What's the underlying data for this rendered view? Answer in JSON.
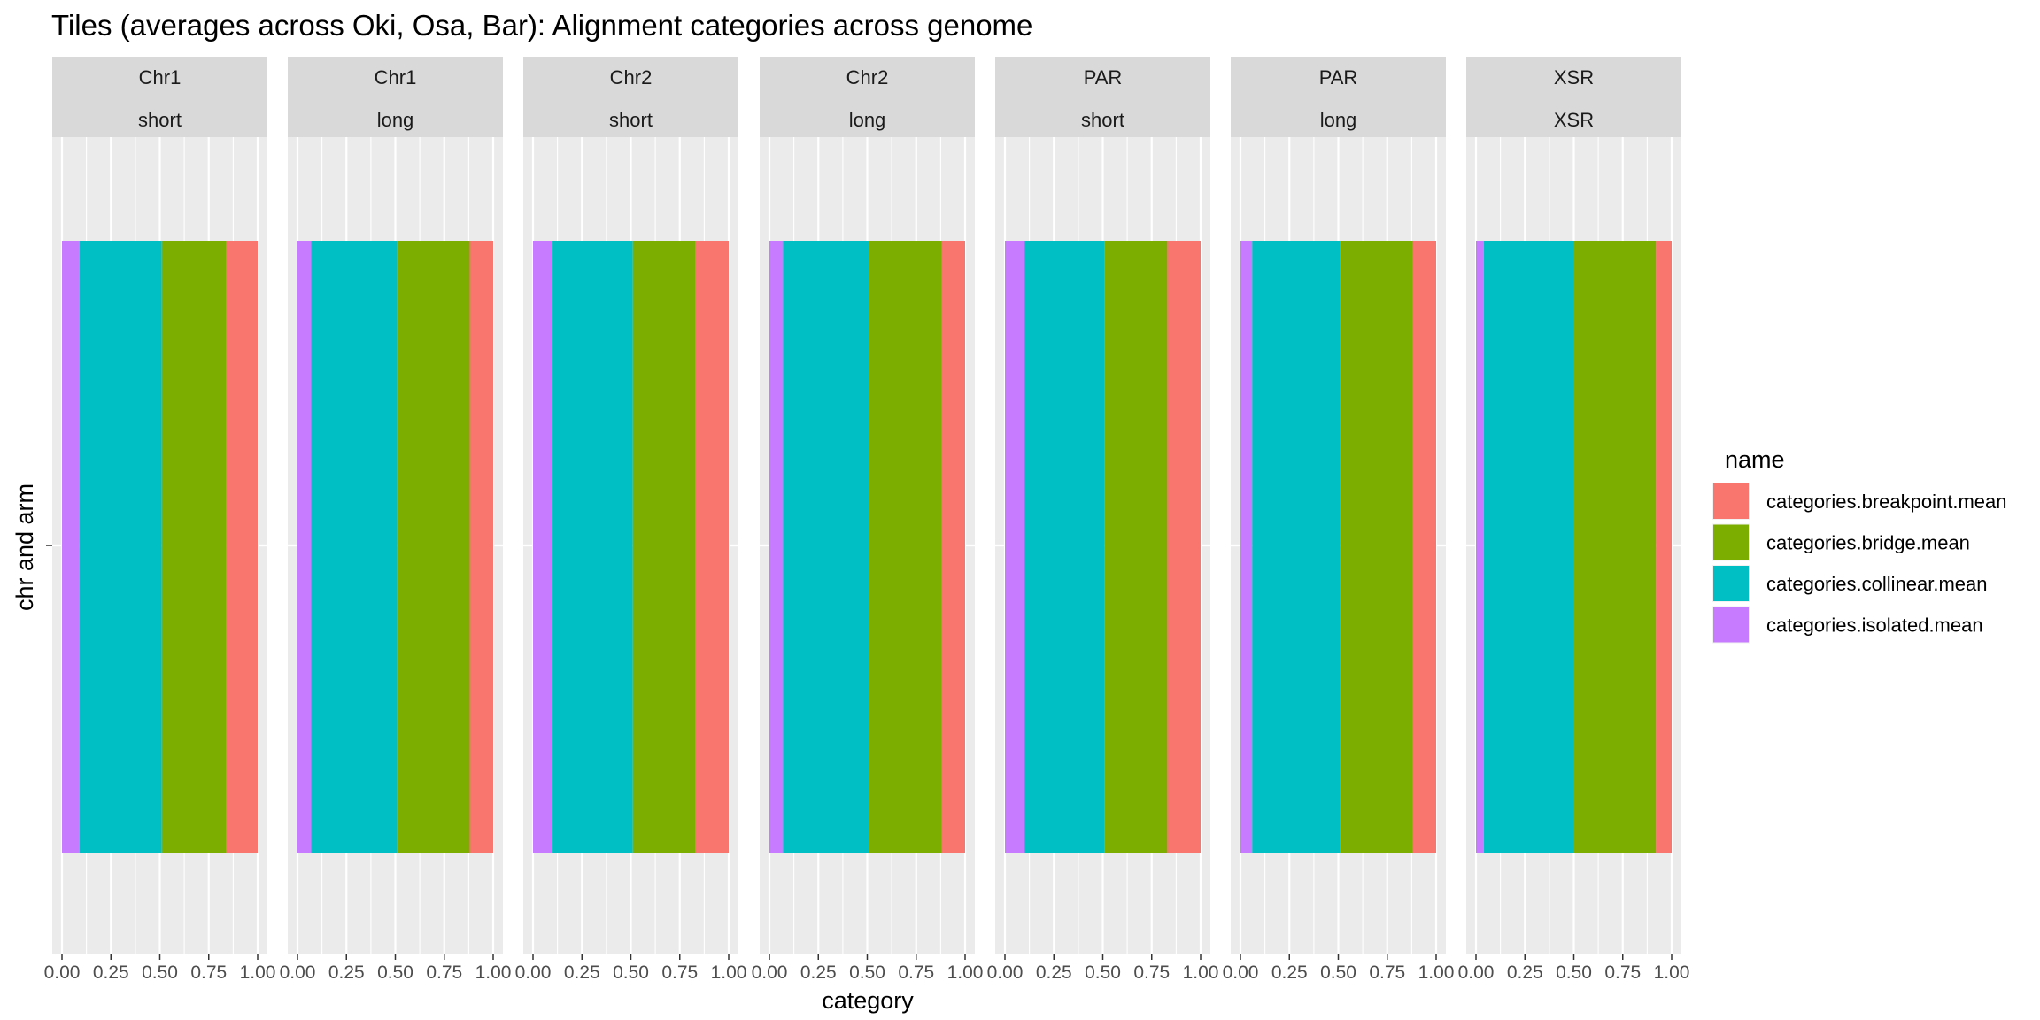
{
  "chart_data": {
    "type": "bar",
    "orientation": "horizontal",
    "stacked": true,
    "title": "Tiles (averages across Oki, Osa, Bar): Alignment categories across genome",
    "xlabel": "category",
    "ylabel": "chr and arm",
    "xlim": [
      0,
      1
    ],
    "x_ticks": [
      "0.00",
      "0.25",
      "0.50",
      "0.75",
      "1.00"
    ],
    "grid": true,
    "legend": {
      "title": "name",
      "position": "right",
      "entries": [
        {
          "label": "categories.breakpoint.mean",
          "color": "#F8766D"
        },
        {
          "label": "categories.bridge.mean",
          "color": "#7CAE00"
        },
        {
          "label": "categories.collinear.mean",
          "color": "#00BFC4"
        },
        {
          "label": "categories.isolated.mean",
          "color": "#C77CFF"
        }
      ]
    },
    "stack_order": [
      "categories.isolated.mean",
      "categories.collinear.mean",
      "categories.bridge.mean",
      "categories.breakpoint.mean"
    ],
    "colors": {
      "categories.breakpoint.mean": "#F8766D",
      "categories.bridge.mean": "#7CAE00",
      "categories.collinear.mean": "#00BFC4",
      "categories.isolated.mean": "#C77CFF"
    },
    "facets": [
      {
        "chr": "Chr1",
        "arm": "short",
        "values": {
          "categories.isolated.mean": 0.09,
          "categories.collinear.mean": 0.42,
          "categories.bridge.mean": 0.33,
          "categories.breakpoint.mean": 0.16
        }
      },
      {
        "chr": "Chr1",
        "arm": "long",
        "values": {
          "categories.isolated.mean": 0.07,
          "categories.collinear.mean": 0.44,
          "categories.bridge.mean": 0.37,
          "categories.breakpoint.mean": 0.12
        }
      },
      {
        "chr": "Chr2",
        "arm": "short",
        "values": {
          "categories.isolated.mean": 0.1,
          "categories.collinear.mean": 0.41,
          "categories.bridge.mean": 0.32,
          "categories.breakpoint.mean": 0.17
        }
      },
      {
        "chr": "Chr2",
        "arm": "long",
        "values": {
          "categories.isolated.mean": 0.07,
          "categories.collinear.mean": 0.44,
          "categories.bridge.mean": 0.37,
          "categories.breakpoint.mean": 0.12
        }
      },
      {
        "chr": "PAR",
        "arm": "short",
        "values": {
          "categories.isolated.mean": 0.1,
          "categories.collinear.mean": 0.41,
          "categories.bridge.mean": 0.32,
          "categories.breakpoint.mean": 0.17
        }
      },
      {
        "chr": "PAR",
        "arm": "long",
        "values": {
          "categories.isolated.mean": 0.06,
          "categories.collinear.mean": 0.45,
          "categories.bridge.mean": 0.37,
          "categories.breakpoint.mean": 0.12
        }
      },
      {
        "chr": "XSR",
        "arm": "XSR",
        "values": {
          "categories.isolated.mean": 0.04,
          "categories.collinear.mean": 0.46,
          "categories.bridge.mean": 0.42,
          "categories.breakpoint.mean": 0.08
        }
      }
    ]
  }
}
